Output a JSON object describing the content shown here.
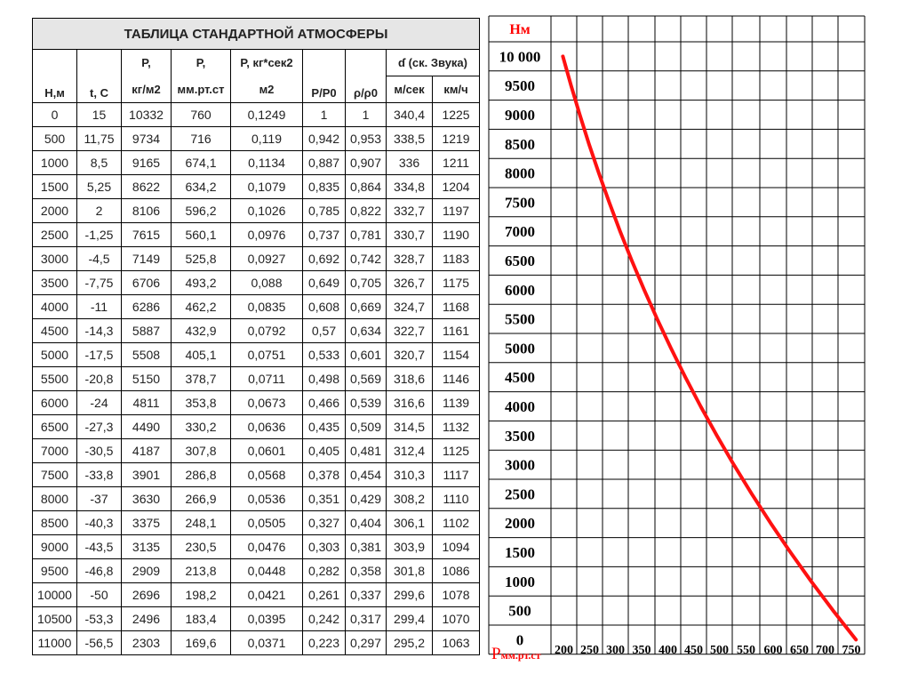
{
  "table": {
    "title": "ТАБЛИЦА СТАНДАРТНОЙ АТМОСФЕРЫ",
    "headers": {
      "h": "Н,м",
      "t": "t, С",
      "p_kg_top": "Р,",
      "p_kg_bot": "кг/м2",
      "p_mm_top": "Р,",
      "p_mm_bot": "мм.рт.ст",
      "rho_top": "Р, кг*сек2",
      "rho_bot": "м2",
      "p_ratio": "Р/Р0",
      "rho_ratio": "ρ/ρ0",
      "sound": "ɗ (ск. Звука)",
      "sound_ms": "м/сек",
      "sound_kmh": "км/ч"
    },
    "rows": [
      [
        "0",
        "15",
        "10332",
        "760",
        "0,1249",
        "1",
        "1",
        "340,4",
        "1225"
      ],
      [
        "500",
        "11,75",
        "9734",
        "716",
        "0,119",
        "0,942",
        "0,953",
        "338,5",
        "1219"
      ],
      [
        "1000",
        "8,5",
        "9165",
        "674,1",
        "0,1134",
        "0,887",
        "0,907",
        "336",
        "1211"
      ],
      [
        "1500",
        "5,25",
        "8622",
        "634,2",
        "0,1079",
        "0,835",
        "0,864",
        "334,8",
        "1204"
      ],
      [
        "2000",
        "2",
        "8106",
        "596,2",
        "0,1026",
        "0,785",
        "0,822",
        "332,7",
        "1197"
      ],
      [
        "2500",
        "-1,25",
        "7615",
        "560,1",
        "0,0976",
        "0,737",
        "0,781",
        "330,7",
        "1190"
      ],
      [
        "3000",
        "-4,5",
        "7149",
        "525,8",
        "0,0927",
        "0,692",
        "0,742",
        "328,7",
        "1183"
      ],
      [
        "3500",
        "-7,75",
        "6706",
        "493,2",
        "0,088",
        "0,649",
        "0,705",
        "326,7",
        "1175"
      ],
      [
        "4000",
        "-11",
        "6286",
        "462,2",
        "0,0835",
        "0,608",
        "0,669",
        "324,7",
        "1168"
      ],
      [
        "4500",
        "-14,3",
        "5887",
        "432,9",
        "0,0792",
        "0,57",
        "0,634",
        "322,7",
        "1161"
      ],
      [
        "5000",
        "-17,5",
        "5508",
        "405,1",
        "0,0751",
        "0,533",
        "0,601",
        "320,7",
        "1154"
      ],
      [
        "5500",
        "-20,8",
        "5150",
        "378,7",
        "0,0711",
        "0,498",
        "0,569",
        "318,6",
        "1146"
      ],
      [
        "6000",
        "-24",
        "4811",
        "353,8",
        "0,0673",
        "0,466",
        "0,539",
        "316,6",
        "1139"
      ],
      [
        "6500",
        "-27,3",
        "4490",
        "330,2",
        "0,0636",
        "0,435",
        "0,509",
        "314,5",
        "1132"
      ],
      [
        "7000",
        "-30,5",
        "4187",
        "307,8",
        "0,0601",
        "0,405",
        "0,481",
        "312,4",
        "1125"
      ],
      [
        "7500",
        "-33,8",
        "3901",
        "286,8",
        "0,0568",
        "0,378",
        "0,454",
        "310,3",
        "1117"
      ],
      [
        "8000",
        "-37",
        "3630",
        "266,9",
        "0,0536",
        "0,351",
        "0,429",
        "308,2",
        "1110"
      ],
      [
        "8500",
        "-40,3",
        "3375",
        "248,1",
        "0,0505",
        "0,327",
        "0,404",
        "306,1",
        "1102"
      ],
      [
        "9000",
        "-43,5",
        "3135",
        "230,5",
        "0,0476",
        "0,303",
        "0,381",
        "303,9",
        "1094"
      ],
      [
        "9500",
        "-46,8",
        "2909",
        "213,8",
        "0,0448",
        "0,282",
        "0,358",
        "301,8",
        "1086"
      ],
      [
        "10000",
        "-50",
        "2696",
        "198,2",
        "0,0421",
        "0,261",
        "0,337",
        "299,6",
        "1078"
      ],
      [
        "10500",
        "-53,3",
        "2496",
        "183,4",
        "0,0395",
        "0,242",
        "0,317",
        "299,4",
        "1070"
      ],
      [
        "11000",
        "-56,5",
        "2303",
        "169,6",
        "0,0371",
        "0,223",
        "0,297",
        "295,2",
        "1063"
      ]
    ]
  },
  "chart_data": {
    "type": "line",
    "ylabel": "Нм",
    "xlabel_main": "Р",
    "xlabel_sub": "мм.рт.ст",
    "y_ticks": [
      "10 000",
      "9500",
      "9000",
      "8500",
      "8000",
      "7500",
      "7000",
      "6500",
      "6000",
      "5500",
      "5000",
      "4500",
      "4000",
      "3500",
      "3000",
      "2500",
      "2000",
      "1500",
      "1000",
      "500",
      "0"
    ],
    "x_ticks": [
      "200",
      "250",
      "300",
      "350",
      "400",
      "450",
      "500",
      "550",
      "600",
      "650",
      "700",
      "750"
    ],
    "xlim": [
      200,
      750
    ],
    "ylim": [
      0,
      10000
    ],
    "grid": true,
    "series": [
      {
        "color": "#ff1111",
        "x": [
          760,
          716,
          674.1,
          634.2,
          596.2,
          560.1,
          525.8,
          493.2,
          462.2,
          432.9,
          405.1,
          378.7,
          353.8,
          330.2,
          307.8,
          286.8,
          266.9,
          248.1,
          230.5,
          213.8,
          198.2
        ],
        "y": [
          0,
          500,
          1000,
          1500,
          2000,
          2500,
          3000,
          3500,
          4000,
          4500,
          5000,
          5500,
          6000,
          6500,
          7000,
          7500,
          8000,
          8500,
          9000,
          9500,
          10000
        ]
      }
    ],
    "colors": {
      "axis_label": "#ff0000",
      "tick_label": "#000000",
      "grid": "#000000"
    }
  }
}
